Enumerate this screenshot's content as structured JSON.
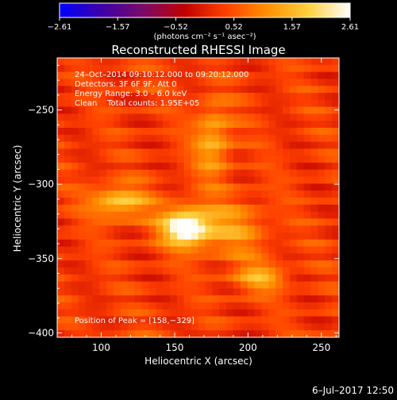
{
  "chart_data": {
    "type": "heatmap",
    "title": "Reconstructed RHESSI Image",
    "xlabel": "Heliocentric X (arcsec)",
    "ylabel": "Heliocentric Y (arcsec)",
    "xlim": [
      70,
      262
    ],
    "ylim": [
      -403,
      -215
    ],
    "x_ticks": [
      {
        "value": 100,
        "label": "100"
      },
      {
        "value": 150,
        "label": "150"
      },
      {
        "value": 200,
        "label": "200"
      },
      {
        "value": 250,
        "label": "250"
      }
    ],
    "y_ticks": [
      {
        "value": -250,
        "label": "−250"
      },
      {
        "value": -300,
        "label": "−300"
      },
      {
        "value": -350,
        "label": "−350"
      },
      {
        "value": -400,
        "label": "−400"
      }
    ],
    "colorbar": {
      "min": -2.61,
      "max": 2.61,
      "tick_labels": [
        "−2.61",
        "−1.57",
        "−0.52",
        "0.52",
        "1.57",
        "2.61"
      ],
      "unit_label": "(photons cm⁻² s⁻¹ asec⁻²)",
      "colors": [
        "#0000ff",
        "#3c00a8",
        "#7a0a6a",
        "#c00000",
        "#ff4000",
        "#ff9000",
        "#ffd040",
        "#ffffff"
      ]
    },
    "annotations": [
      "24–Oct–2014 09:10:12.000 to 09:20:12.000",
      "Detectors: 3F 6F 9F, Att 0",
      "Energy Range: 3.0 – 6.0 keV",
      "Clean    Total counts: 1.95E+05"
    ],
    "peak_label": "Position of Peak = [158,−329]",
    "peak": {
      "x": 158,
      "y": -329,
      "value": 2.61
    },
    "sources": [
      {
        "x": 158,
        "y": -329,
        "value": 2.61,
        "sx": 12,
        "sy": 9
      },
      {
        "x": 112,
        "y": -312,
        "value": 1.5,
        "sx": 14,
        "sy": 8
      },
      {
        "x": 176,
        "y": -270,
        "value": 1.2,
        "sx": 9,
        "sy": 18
      },
      {
        "x": 208,
        "y": -363,
        "value": 1.15,
        "sx": 12,
        "sy": 7
      },
      {
        "x": 190,
        "y": -330,
        "value": 0.9,
        "sx": 16,
        "sy": 14
      }
    ],
    "background_level": 0.45
  },
  "footer": {
    "date_stamp": "6–Jul–2017 12:50"
  }
}
